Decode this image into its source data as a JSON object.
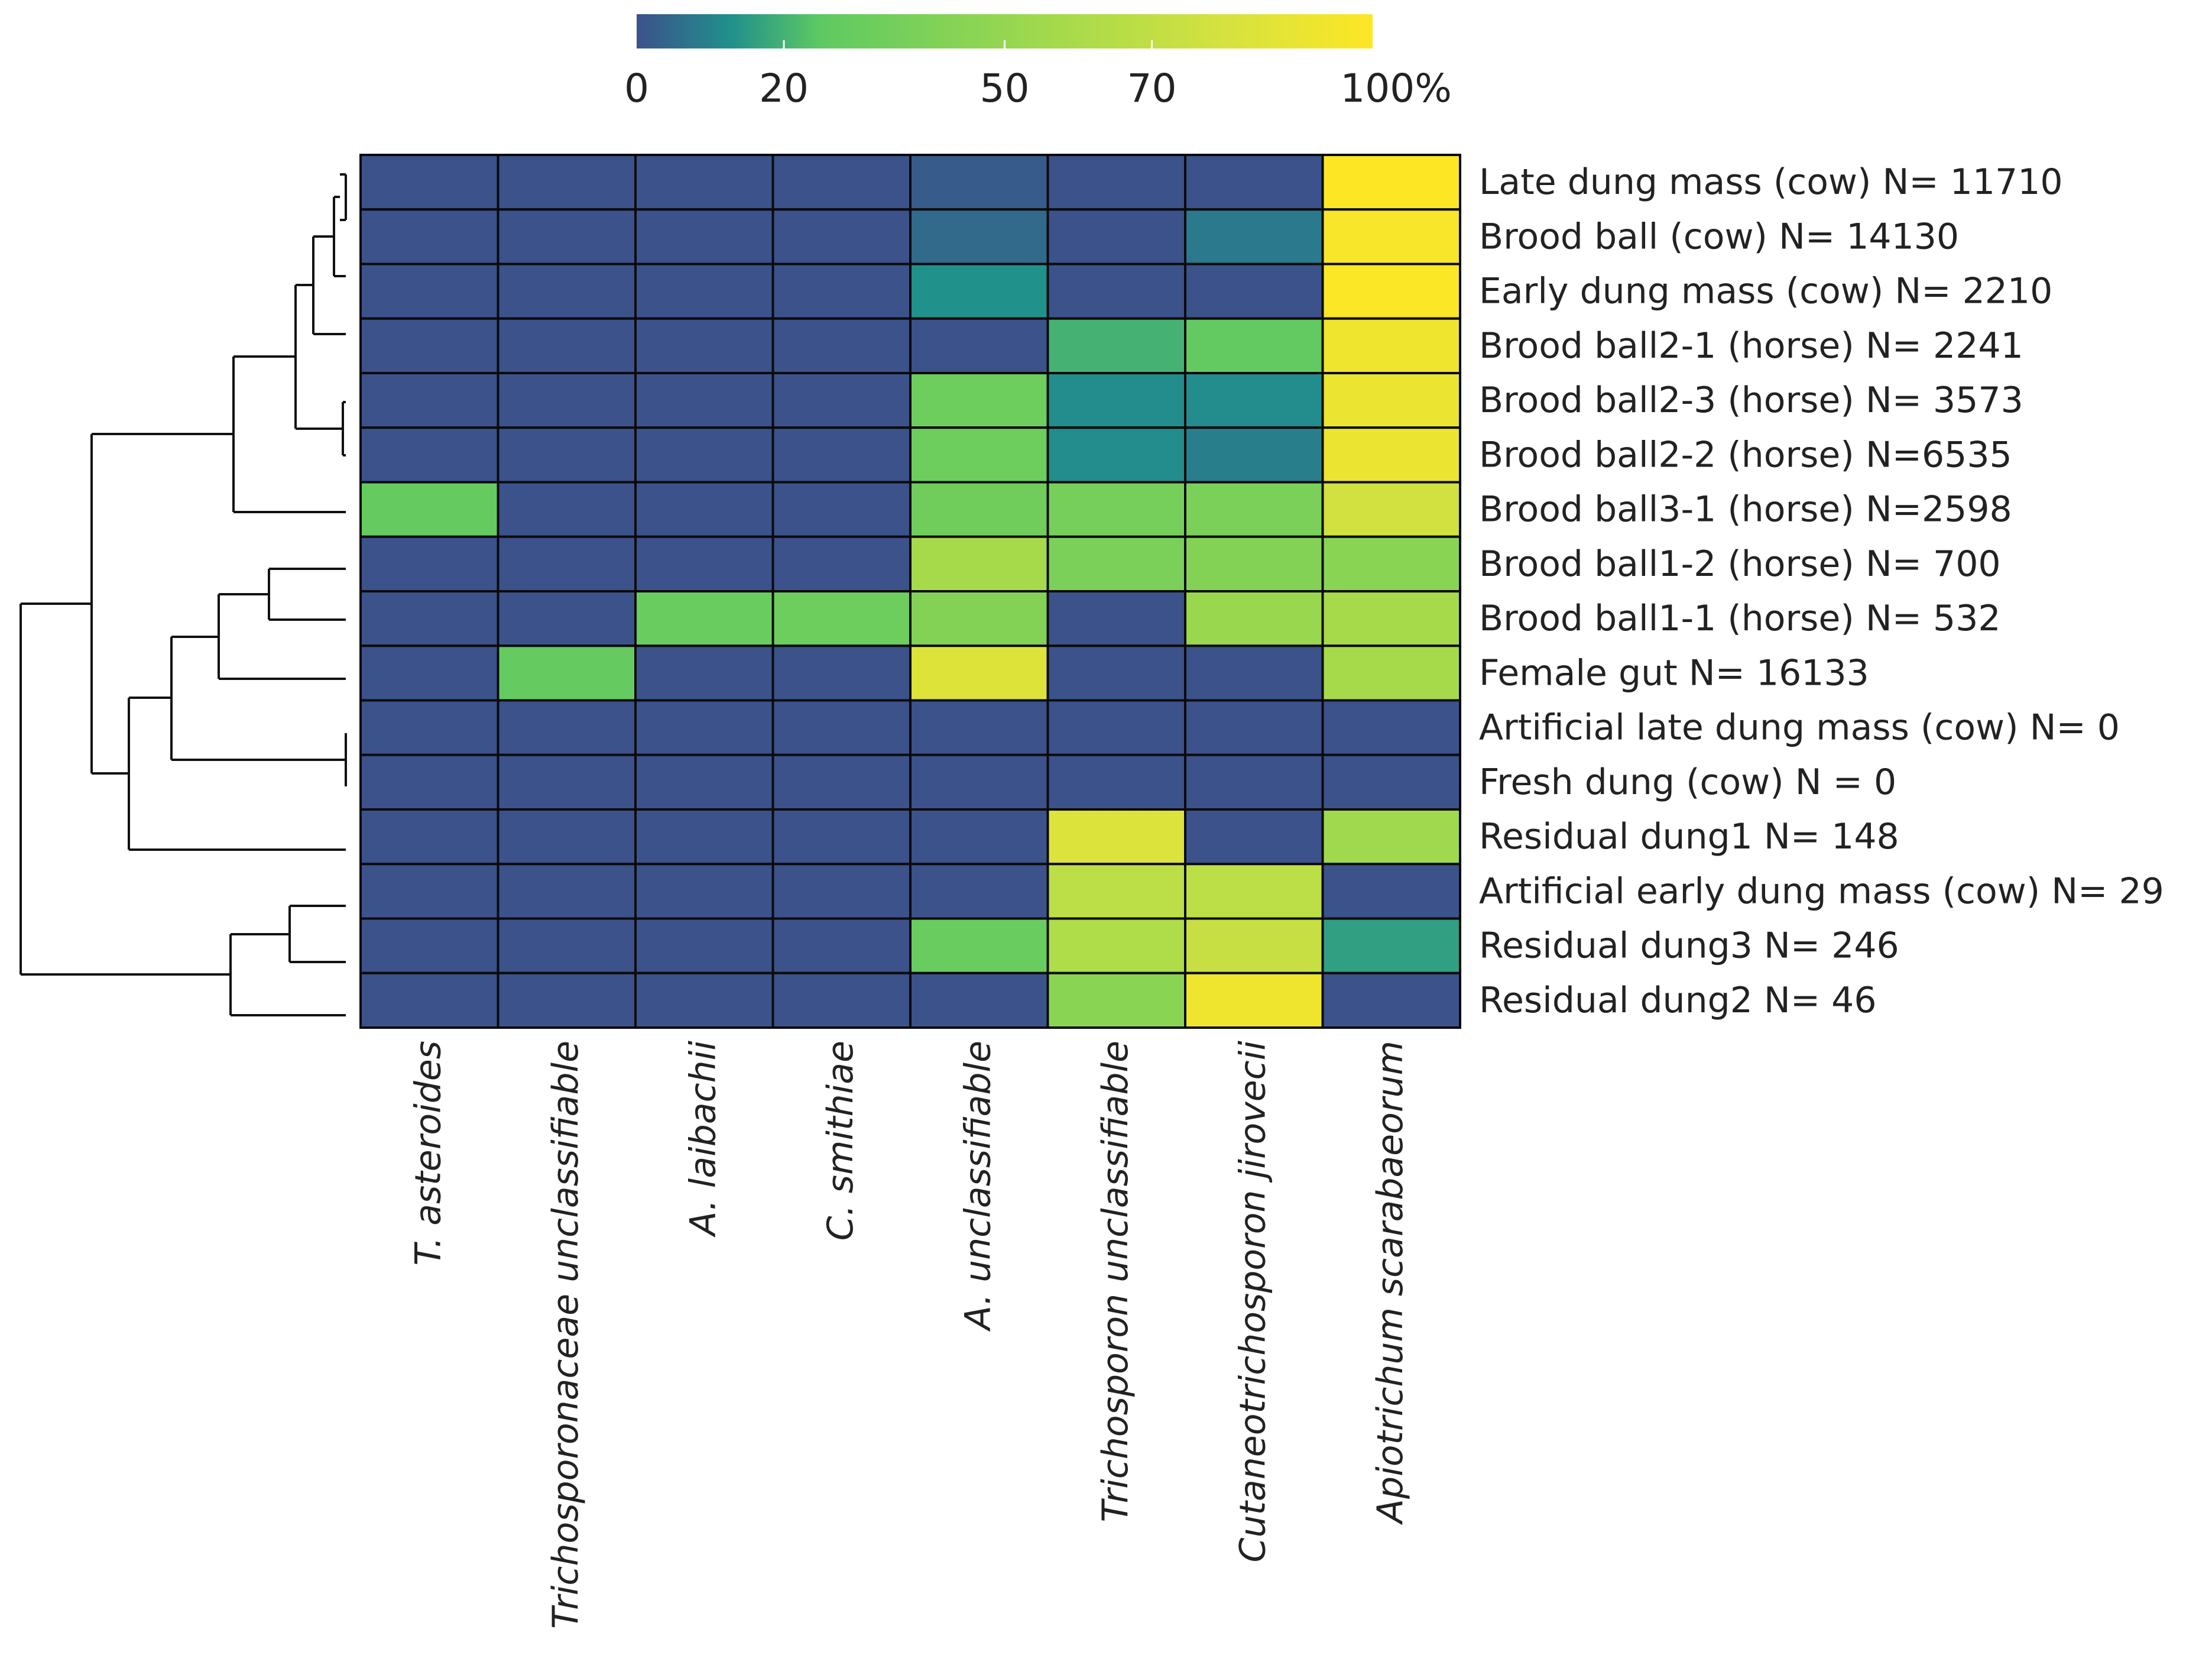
{
  "chart_data": {
    "type": "heatmap",
    "colorbar": {
      "ticks": [
        "0",
        "20",
        "50",
        "70",
        "100%"
      ],
      "tick_values": [
        0,
        20,
        50,
        70,
        100
      ],
      "range": [
        0,
        100
      ],
      "stops": [
        {
          "v": 0,
          "c": "#3b528b"
        },
        {
          "v": 13,
          "c": "#21918c"
        },
        {
          "v": 25,
          "c": "#5ec962"
        },
        {
          "v": 55,
          "c": "#a0d94d"
        },
        {
          "v": 80,
          "c": "#d6e23f"
        },
        {
          "v": 100,
          "c": "#fde725"
        }
      ]
    },
    "columns": [
      "T. asteroides",
      "Trichosporonaceae unclassifiable",
      "A. laibachii",
      "C. smithiae",
      "A. unclassifiable",
      "Trichosporon unclassifiable",
      "Cutaneotrichosporon jirovecii",
      "Apiotrichum scarabaeorum"
    ],
    "rows": [
      {
        "label": "Late dung mass (cow) N= 11710",
        "values": [
          0,
          0,
          0,
          0,
          2,
          0,
          0,
          100
        ]
      },
      {
        "label": "Brood ball (cow) N= 14130",
        "values": [
          0,
          0,
          0,
          0,
          5,
          0,
          8,
          97
        ]
      },
      {
        "label": "Early dung mass (cow) N= 2210",
        "values": [
          0,
          0,
          0,
          0,
          13,
          0,
          0,
          99
        ]
      },
      {
        "label": "Brood ball2-1 (horse) N= 2241",
        "values": [
          0,
          0,
          0,
          0,
          0,
          20,
          27,
          93
        ]
      },
      {
        "label": "Brood ball2-3 (horse) N= 3573",
        "values": [
          0,
          0,
          0,
          0,
          32,
          12,
          12,
          91
        ]
      },
      {
        "label": "Brood ball2-2 (horse) N=6535",
        "values": [
          0,
          0,
          0,
          0,
          32,
          12,
          9,
          91
        ]
      },
      {
        "label": "Brood ball3-1 (horse) N=2598",
        "values": [
          28,
          0,
          0,
          0,
          33,
          36,
          38,
          78
        ]
      },
      {
        "label": "Brood ball1-2 (horse) N= 700",
        "values": [
          0,
          0,
          0,
          0,
          58,
          38,
          42,
          45
        ]
      },
      {
        "label": "Brood ball1-1 (horse) N= 532",
        "values": [
          0,
          0,
          30,
          32,
          42,
          0,
          52,
          58
        ]
      },
      {
        "label": "Female gut N= 16133",
        "values": [
          0,
          28,
          0,
          0,
          84,
          0,
          0,
          58
        ]
      },
      {
        "label": "Artificial late dung mass (cow) N= 0",
        "values": [
          0,
          0,
          0,
          0,
          0,
          0,
          0,
          0
        ]
      },
      {
        "label": "Fresh dung (cow) N = 0",
        "values": [
          0,
          0,
          0,
          0,
          0,
          0,
          0,
          0
        ]
      },
      {
        "label": "Residual dung1 N= 148",
        "values": [
          0,
          0,
          0,
          0,
          0,
          83,
          0,
          55
        ]
      },
      {
        "label": "Artificial early dung mass (cow) N= 29",
        "values": [
          0,
          0,
          0,
          0,
          0,
          68,
          68,
          0
        ]
      },
      {
        "label": "Residual dung3 N= 246",
        "values": [
          0,
          0,
          0,
          0,
          30,
          62,
          73,
          16
        ]
      },
      {
        "label": "Residual dung2 N= 46",
        "values": [
          0,
          0,
          0,
          0,
          0,
          45,
          93,
          0
        ]
      }
    ],
    "row_dendrogram": "left",
    "legend": "top-center"
  }
}
